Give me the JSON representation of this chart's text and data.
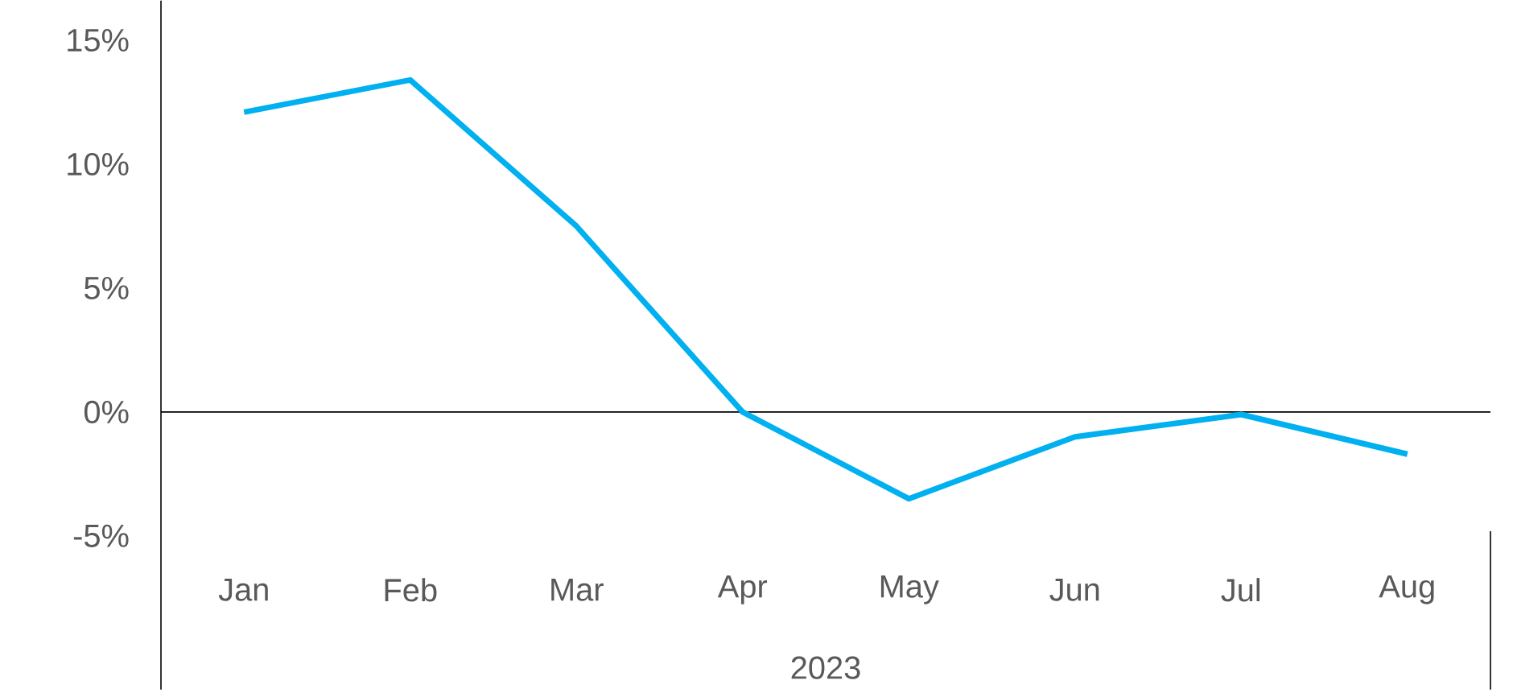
{
  "chart_data": {
    "type": "line",
    "xlabel": "2023",
    "categories": [
      "Jan",
      "Feb",
      "Mar",
      "Apr",
      "May",
      "Jun",
      "Jul",
      "Aug"
    ],
    "values": [
      12.1,
      13.4,
      7.5,
      0.0,
      -3.5,
      -1.0,
      -0.1,
      -1.7
    ],
    "color": "#00b0f0",
    "ylim": [
      -11.2,
      16.6
    ],
    "yticks": [
      {
        "value": -5,
        "label": "-5%"
      },
      {
        "value": 0,
        "label": "0%"
      },
      {
        "value": 5,
        "label": "5%"
      },
      {
        "value": 10,
        "label": "10%"
      },
      {
        "value": 15,
        "label": "15%"
      }
    ]
  }
}
